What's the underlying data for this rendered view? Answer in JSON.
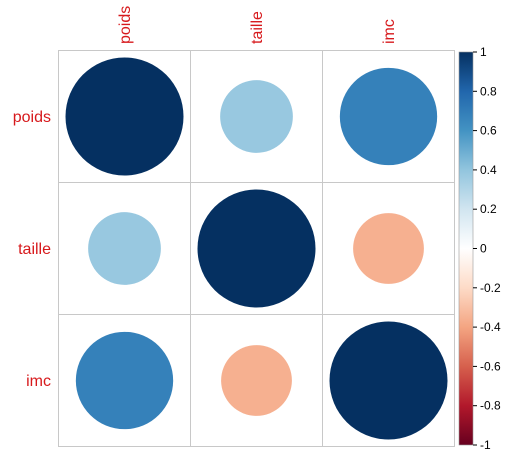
{
  "chart_data": {
    "type": "heatmap",
    "variables": [
      "poids",
      "taille",
      "imc"
    ],
    "matrix": [
      [
        1.0,
        0.38,
        0.68
      ],
      [
        0.38,
        1.0,
        -0.36
      ],
      [
        0.68,
        -0.36,
        1.0
      ]
    ],
    "colorbar": {
      "range": [
        -1,
        1
      ],
      "ticks": [
        "1",
        "0.8",
        "0.6",
        "0.4",
        "0.2",
        "0",
        "-0.2",
        "-0.4",
        "-0.6",
        "-0.8",
        "-1"
      ],
      "palette": [
        "#67001f",
        "#b2182b",
        "#d6604d",
        "#f4a582",
        "#fddbc7",
        "#ffffff",
        "#d1e5f0",
        "#92c5de",
        "#4393c3",
        "#2166ac",
        "#053061"
      ]
    },
    "label_color": "#d7191c",
    "grid": true
  }
}
